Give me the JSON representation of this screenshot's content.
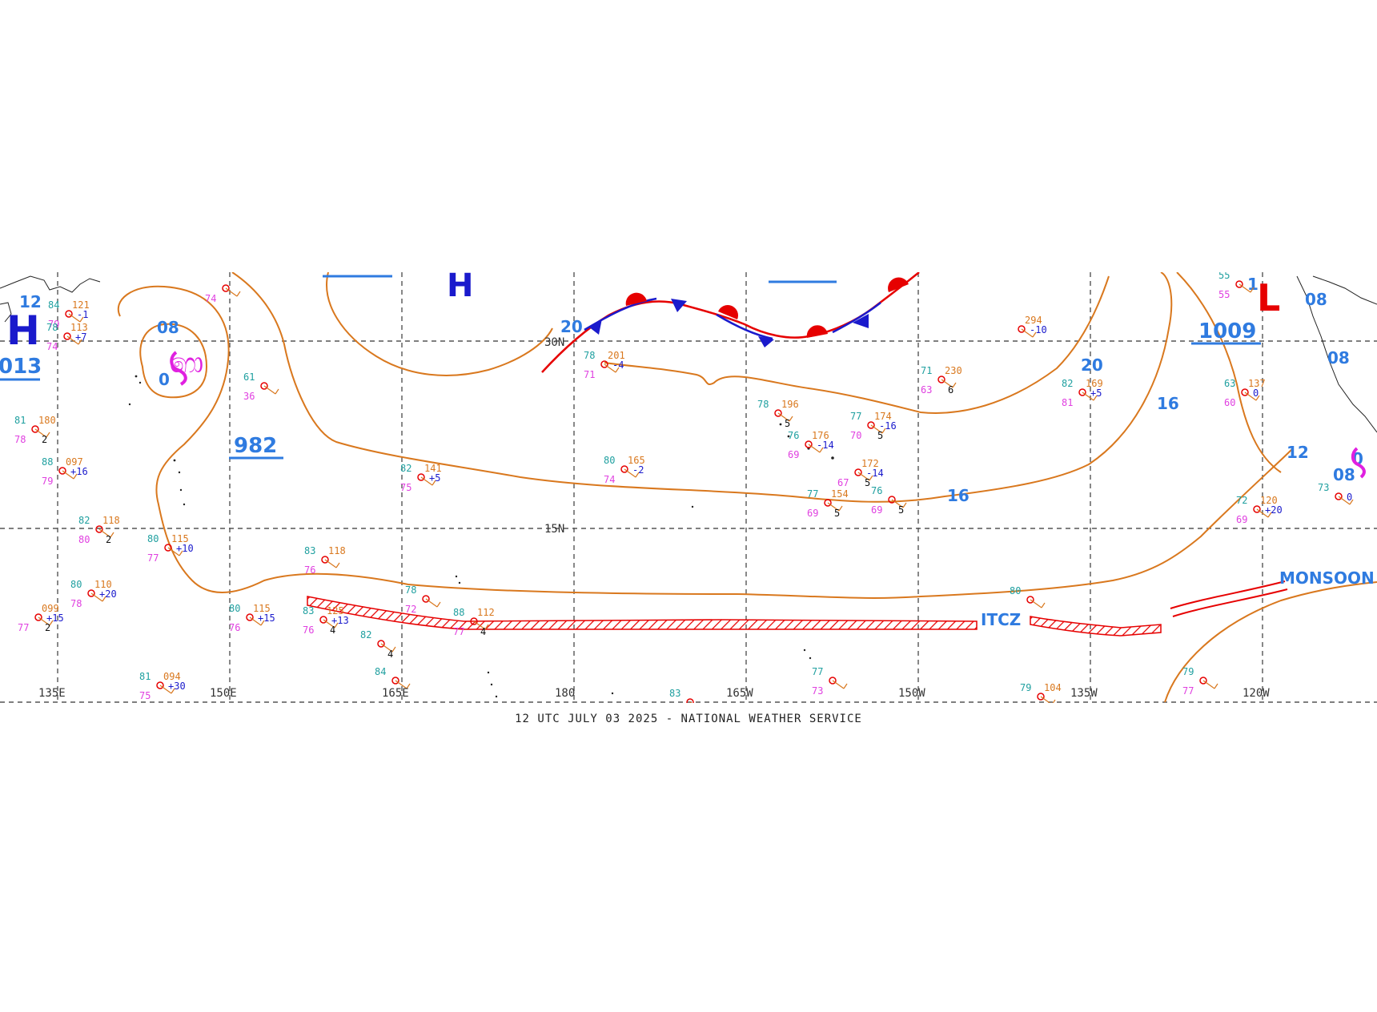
{
  "footer": {
    "caption": "12 UTC JULY 03 2025 - NATIONAL WEATHER SERVICE"
  },
  "colors": {
    "isobar": "#d9781e",
    "label_blue": "#2f7be0",
    "high_blue": "#1a1acc",
    "low_red": "#e60000",
    "itcz_red": "#e60000",
    "front_blue": "#1a1acc",
    "front_red": "#e60000",
    "tropical_magenta": "#e020e0"
  },
  "longitudes": [
    "135E",
    "150E",
    "165E",
    "180",
    "165W",
    "150W",
    "135W",
    "120W"
  ],
  "latitudes": [
    "30N",
    "15N"
  ],
  "pressure_centers": {
    "high_west": "H",
    "high_west_value": "013",
    "high_north": "H",
    "low_east": "L",
    "low_east_value": "1009",
    "low_west_value": "982"
  },
  "isobar_labels": [
    "12",
    "08",
    "0",
    "20",
    "20",
    "16",
    "16",
    "12",
    "08",
    "08",
    "08",
    "0",
    "1"
  ],
  "features": {
    "itcz": "ITCZ",
    "monsoon": "MONSOON T"
  },
  "stations": [
    {
      "t": "121",
      "a": "84",
      "b": "79",
      "c": "-1"
    },
    {
      "t": "113",
      "a": "78",
      "b": "74",
      "c": "+7"
    },
    {
      "t": "180",
      "a": "81",
      "b": "78",
      "d": "2"
    },
    {
      "t": "097",
      "a": "88",
      "b": "79",
      "c": "+16"
    },
    {
      "t": "118",
      "a": "82",
      "b": "80",
      "d": "2"
    },
    {
      "t": "115",
      "a": "80",
      "b": "77",
      "c": "+10"
    },
    {
      "t": "110",
      "a": "80",
      "b": "78",
      "c": "+20"
    },
    {
      "t": "099",
      "b": "77",
      "c": "+15",
      "d": "2"
    },
    {
      "t": "094",
      "a": "81",
      "b": "75",
      "c": "+30"
    },
    {
      "t": "115",
      "a": "80",
      "b": "76",
      "c": "+15"
    },
    {
      "t": "125",
      "a": "83",
      "b": "76",
      "c": "+13",
      "d": "4"
    },
    {
      "t": "118",
      "a": "83",
      "b": "76"
    },
    {
      "t": "141",
      "a": "82",
      "b": "75",
      "c": "+5"
    },
    {
      "t": "112",
      "a": "88",
      "b": "77",
      "d": "4"
    },
    {
      "a": "78",
      "b": "72"
    },
    {
      "a": "82",
      "d": "4"
    },
    {
      "a": "84"
    },
    {
      "a": "61",
      "b": "36"
    },
    {
      "b": "74"
    },
    {
      "t": "201",
      "a": "78",
      "b": "71",
      "c": "-4"
    },
    {
      "t": "165",
      "a": "80",
      "b": "74",
      "c": "-2"
    },
    {
      "t": "196",
      "a": "78",
      "d": "5"
    },
    {
      "t": "176",
      "a": "76",
      "b": "69",
      "c": "-14"
    },
    {
      "t": "174",
      "a": "77",
      "b": "70",
      "d": "5",
      "c": "-16"
    },
    {
      "t": "172",
      "b": "67",
      "c": "-14",
      "d": "5"
    },
    {
      "t": "154",
      "a": "77",
      "b": "69",
      "d": "5"
    },
    {
      "a": "76",
      "b": "69",
      "d": "5"
    },
    {
      "t": "230",
      "a": "71",
      "b": "63",
      "d": "6"
    },
    {
      "t": "294",
      "c": "-10"
    },
    {
      "t": "169",
      "a": "82",
      "b": "81",
      "c": "+5"
    },
    {
      "t": "137",
      "a": "63",
      "b": "60",
      "c": "0"
    },
    {
      "t": "120",
      "a": "72",
      "b": "69",
      "c": "+20"
    },
    {
      "a": "80"
    },
    {
      "a": "77",
      "b": "73"
    },
    {
      "a": "83"
    },
    {
      "t": "104",
      "a": "79"
    },
    {
      "a": "79",
      "b": "77"
    },
    {
      "a": "73",
      "c": "0"
    },
    {
      "a": "55",
      "b": "55"
    }
  ]
}
